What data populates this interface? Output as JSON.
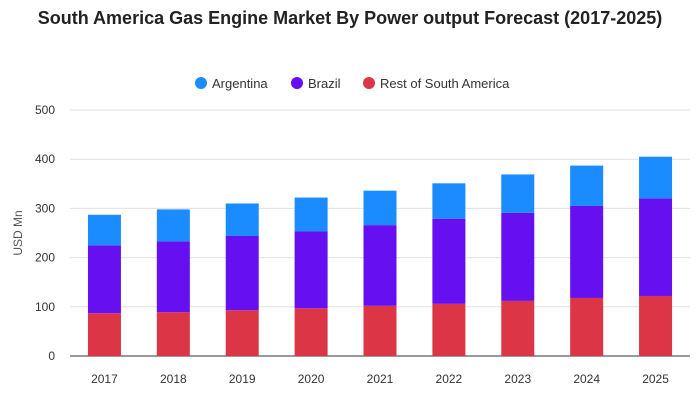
{
  "chart_data": {
    "type": "bar",
    "stacked": true,
    "title": "South America Gas Engine Market By Power output Forecast (2017-2025)",
    "ylabel": "USD Mn",
    "xlabel": "",
    "ylim": [
      0,
      500
    ],
    "yticks": [
      0,
      100,
      200,
      300,
      400,
      500
    ],
    "grid": true,
    "legend_position": "top",
    "categories": [
      "2017",
      "2018",
      "2019",
      "2020",
      "2021",
      "2022",
      "2023",
      "2024",
      "2025"
    ],
    "series": [
      {
        "name": "Rest of South America",
        "color": "#dc3545",
        "values": [
          87,
          89,
          93,
          97,
          102,
          106,
          112,
          118,
          122
        ]
      },
      {
        "name": "Brazil",
        "color": "#6610f2",
        "values": [
          138,
          144,
          151,
          156,
          164,
          173,
          179,
          187,
          198
        ]
      },
      {
        "name": "Argentina",
        "color": "#1a8cff",
        "values": [
          62,
          65,
          66,
          69,
          70,
          72,
          78,
          82,
          85
        ]
      }
    ]
  }
}
